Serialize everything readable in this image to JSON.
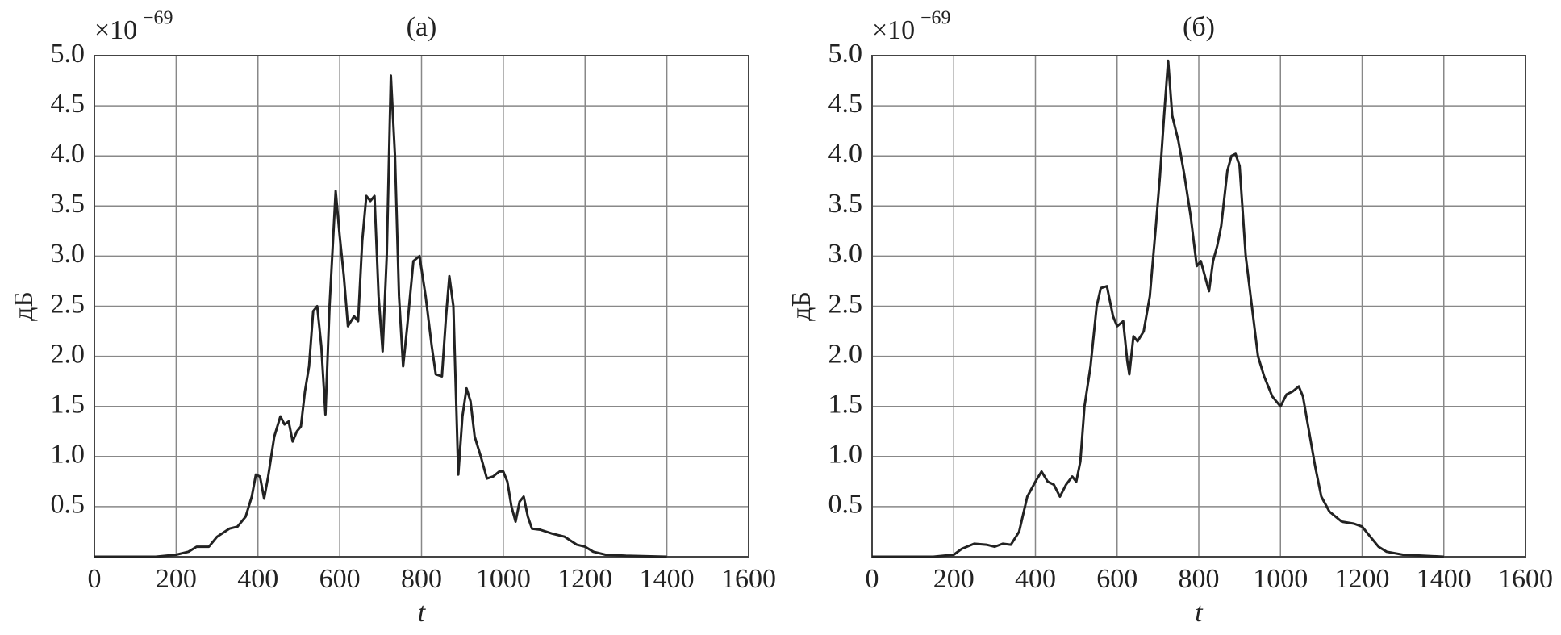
{
  "chart_data": [
    {
      "type": "line",
      "title": "(а)",
      "x_label": "t",
      "y_label": "дБ",
      "scale_base": "×10",
      "scale_exponent": "−69",
      "xlim": [
        0,
        1600
      ],
      "ylim": [
        0,
        5
      ],
      "xticks": [
        0,
        200,
        400,
        600,
        800,
        1000,
        1200,
        1400,
        1600
      ],
      "yticks": [
        0.5,
        {
          "value": 1,
          "label": "1.0"
        },
        1.5,
        {
          "value": 2,
          "label": "2.0"
        },
        2.5,
        {
          "value": 3,
          "label": "3.0"
        },
        3.5,
        {
          "value": 4,
          "label": "4.0"
        },
        4.5,
        {
          "value": 5,
          "label": "5.0"
        }
      ],
      "grid": true,
      "series": [
        {
          "color": "#222222",
          "x": [
            0,
            150,
            200,
            230,
            250,
            280,
            300,
            330,
            350,
            370,
            385,
            395,
            405,
            415,
            425,
            440,
            455,
            465,
            475,
            485,
            495,
            505,
            515,
            525,
            535,
            545,
            555,
            565,
            575,
            590,
            600,
            610,
            620,
            635,
            645,
            655,
            665,
            675,
            685,
            695,
            705,
            715,
            725,
            735,
            745,
            755,
            765,
            780,
            795,
            810,
            825,
            835,
            850,
            860,
            868,
            878,
            890,
            900,
            910,
            920,
            930,
            945,
            960,
            975,
            990,
            1000,
            1010,
            1020,
            1030,
            1040,
            1050,
            1060,
            1070,
            1090,
            1120,
            1150,
            1180,
            1200,
            1220,
            1250,
            1300,
            1400
          ],
          "values": [
            0,
            0,
            0.02,
            0.05,
            0.1,
            0.1,
            0.2,
            0.28,
            0.3,
            0.4,
            0.6,
            0.82,
            0.8,
            0.58,
            0.8,
            1.2,
            1.4,
            1.32,
            1.35,
            1.15,
            1.25,
            1.3,
            1.65,
            1.9,
            2.45,
            2.5,
            2.1,
            1.42,
            2.5,
            3.65,
            3.2,
            2.8,
            2.3,
            2.4,
            2.35,
            3.15,
            3.6,
            3.55,
            3.6,
            2.6,
            2.05,
            3.0,
            4.8,
            4.0,
            2.6,
            1.9,
            2.3,
            2.95,
            3.0,
            2.6,
            2.1,
            1.82,
            1.8,
            2.4,
            2.8,
            2.5,
            0.82,
            1.4,
            1.68,
            1.55,
            1.2,
            1.0,
            0.78,
            0.8,
            0.85,
            0.85,
            0.75,
            0.5,
            0.35,
            0.55,
            0.6,
            0.4,
            0.28,
            0.27,
            0.23,
            0.2,
            0.12,
            0.1,
            0.05,
            0.02,
            0.01,
            0
          ]
        }
      ]
    },
    {
      "type": "line",
      "title": "(б)",
      "x_label": "t",
      "y_label": "дБ",
      "scale_base": "×10",
      "scale_exponent": "−69",
      "xlim": [
        0,
        1600
      ],
      "ylim": [
        0,
        5
      ],
      "xticks": [
        0,
        200,
        400,
        600,
        800,
        1000,
        1200,
        1400,
        1600
      ],
      "yticks": [
        0.5,
        {
          "value": 1,
          "label": "1.0"
        },
        1.5,
        {
          "value": 2,
          "label": "2.0"
        },
        2.5,
        {
          "value": 3,
          "label": "3.0"
        },
        3.5,
        {
          "value": 4,
          "label": "4.0"
        },
        4.5,
        {
          "value": 5,
          "label": "5.0"
        }
      ],
      "grid": true,
      "series": [
        {
          "color": "#222222",
          "x": [
            0,
            150,
            200,
            220,
            250,
            280,
            300,
            320,
            340,
            360,
            380,
            400,
            415,
            430,
            445,
            460,
            475,
            490,
            500,
            510,
            520,
            535,
            550,
            560,
            575,
            590,
            600,
            615,
            625,
            630,
            640,
            650,
            665,
            680,
            695,
            705,
            715,
            725,
            735,
            750,
            765,
            780,
            795,
            805,
            815,
            825,
            835,
            845,
            855,
            870,
            880,
            890,
            900,
            915,
            930,
            945,
            960,
            980,
            1000,
            1015,
            1030,
            1045,
            1055,
            1070,
            1085,
            1100,
            1120,
            1150,
            1180,
            1200,
            1220,
            1240,
            1260,
            1300,
            1400
          ],
          "values": [
            0,
            0,
            0.02,
            0.08,
            0.13,
            0.12,
            0.1,
            0.13,
            0.12,
            0.25,
            0.6,
            0.75,
            0.85,
            0.75,
            0.72,
            0.6,
            0.72,
            0.8,
            0.75,
            0.95,
            1.5,
            1.9,
            2.5,
            2.68,
            2.7,
            2.4,
            2.3,
            2.35,
            1.95,
            1.82,
            2.2,
            2.15,
            2.25,
            2.6,
            3.3,
            3.8,
            4.4,
            4.95,
            4.4,
            4.15,
            3.8,
            3.4,
            2.9,
            2.95,
            2.8,
            2.65,
            2.95,
            3.1,
            3.3,
            3.85,
            4.0,
            4.02,
            3.9,
            3.0,
            2.5,
            2.0,
            1.8,
            1.6,
            1.5,
            1.62,
            1.65,
            1.7,
            1.6,
            1.25,
            0.9,
            0.6,
            0.45,
            0.35,
            0.33,
            0.3,
            0.2,
            0.1,
            0.05,
            0.02,
            0
          ]
        }
      ]
    }
  ]
}
